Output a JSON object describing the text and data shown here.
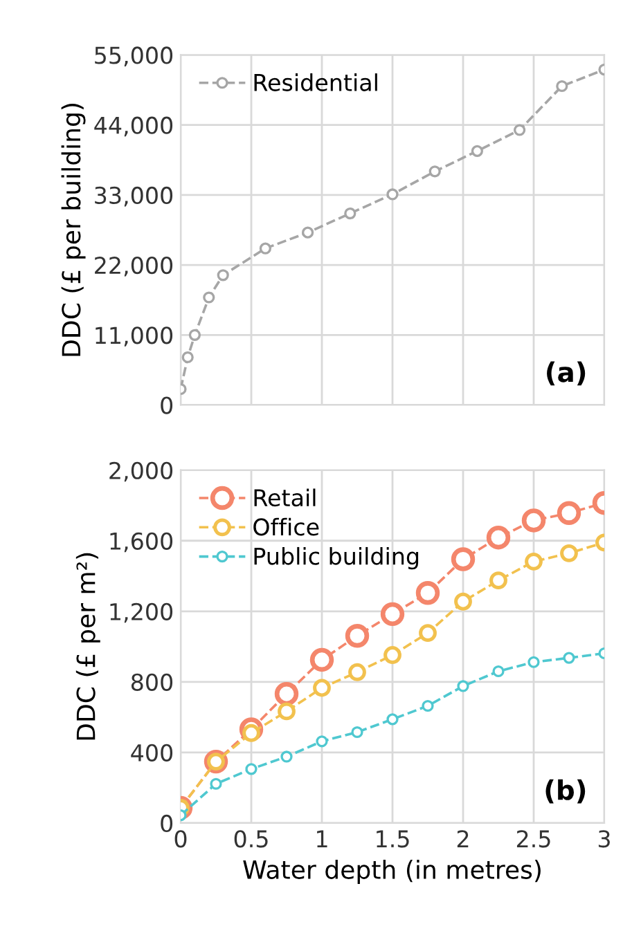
{
  "chart_data": [
    {
      "type": "line",
      "ylabel": "DDC (£ per building)",
      "annotations": [
        "(a)"
      ],
      "xlim": [
        0,
        3
      ],
      "xticks": [
        0,
        0.5,
        1,
        1.5,
        2,
        2.5,
        3
      ],
      "ylim": [
        0,
        55000
      ],
      "yticks": [
        {
          "value": 0,
          "label": "0"
        },
        {
          "value": 11000,
          "label": "11,000"
        },
        {
          "value": 22000,
          "label": "22,000"
        },
        {
          "value": 33000,
          "label": "33,000"
        },
        {
          "value": 44000,
          "label": "44,000"
        },
        {
          "value": 55000,
          "label": "55,000"
        }
      ],
      "tick_labels": "y",
      "grid": true,
      "legend": "top left",
      "marker": "circle",
      "line_style": "dashed",
      "series": [
        {
          "name": "Residential",
          "color": "#a6a6a6",
          "x": [
            0,
            0.05,
            0.1,
            0.2,
            0.3,
            0.6,
            0.9,
            1.2,
            1.5,
            1.8,
            2.1,
            2.4,
            2.7,
            3
          ],
          "values": [
            2500,
            7500,
            11000,
            16900,
            20400,
            24600,
            27100,
            30100,
            33100,
            36700,
            39900,
            43200,
            50100,
            52700
          ]
        }
      ]
    },
    {
      "type": "line",
      "xlabel": "Water depth (in metres)",
      "ylabel": "DDC (£ per m²)",
      "annotations": [
        "(b)"
      ],
      "x": [
        0,
        0.25,
        0.5,
        0.75,
        1,
        1.25,
        1.5,
        1.75,
        2,
        2.25,
        2.5,
        2.75,
        3
      ],
      "xlim": [
        0,
        3
      ],
      "xticks": [
        0,
        0.5,
        1,
        1.5,
        2,
        2.5,
        3
      ],
      "ylim": [
        0,
        2000
      ],
      "yticks": [
        {
          "value": 0,
          "label": "0"
        },
        {
          "value": 400,
          "label": "400"
        },
        {
          "value": 800,
          "label": "800"
        },
        {
          "value": 1200,
          "label": "1,200"
        },
        {
          "value": 1600,
          "label": "1,600"
        },
        {
          "value": 2000,
          "label": "2,000"
        }
      ],
      "grid": true,
      "legend": "top left",
      "marker": "circle",
      "line_style": "dashed",
      "series": [
        {
          "name": "Retail",
          "color": "#f4866b",
          "values": [
            86,
            348,
            531,
            732,
            925,
            1061,
            1184,
            1304,
            1495,
            1618,
            1715,
            1757,
            1814
          ]
        },
        {
          "name": "Office",
          "color": "#f2c14e",
          "values": [
            86,
            348,
            510,
            633,
            766,
            855,
            952,
            1077,
            1255,
            1375,
            1482,
            1529,
            1590
          ]
        },
        {
          "name": "Public building",
          "color": "#4fc8d0",
          "values": [
            44,
            222,
            306,
            376,
            463,
            515,
            588,
            664,
            776,
            860,
            912,
            936,
            962
          ]
        }
      ]
    }
  ]
}
